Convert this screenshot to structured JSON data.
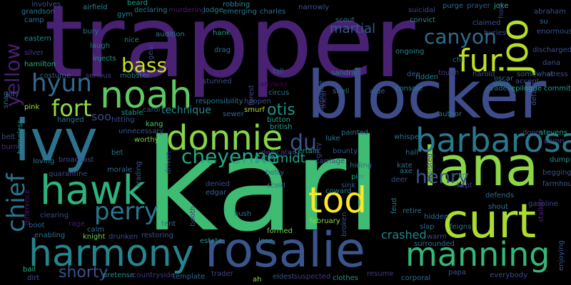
{
  "words": {
    "karl": {
      "text": "karl",
      "color": "#3fbc73"
    },
    "trapper": {
      "text": "trapper",
      "color": "#482173"
    },
    "blocker": {
      "text": "blocker",
      "color": "#3e4c8a"
    },
    "ivy": {
      "text": "ivy",
      "color": "#2c728e"
    },
    "rosalie": {
      "text": "rosalie",
      "color": "#3a548c"
    },
    "lana": {
      "text": "lana",
      "color": "#8bd646"
    },
    "curt": {
      "text": "curt",
      "color": "#addc30"
    },
    "harmony": {
      "text": "harmony",
      "color": "#25858e"
    },
    "noah": {
      "text": "noah",
      "color": "#5ec962"
    },
    "donnie": {
      "text": "donnie",
      "color": "#86d549"
    },
    "hawk": {
      "text": "hawk",
      "color": "#2db27d"
    },
    "barbarosa": {
      "text": "barbarosa",
      "color": "#2a788e"
    },
    "tod": {
      "text": "tod",
      "color": "#fde725"
    },
    "manning": {
      "text": "manning",
      "color": "#35b779"
    },
    "joo": {
      "text": "joo",
      "color": "#b5de2b"
    },
    "fur": {
      "text": "fur",
      "color": "#c2df23"
    },
    "perry": {
      "text": "perry",
      "color": "#2a768e"
    },
    "fort": {
      "text": "fort",
      "color": "#90d743"
    },
    "hyun": {
      "text": "hyun",
      "color": "#31688e"
    },
    "chief": {
      "text": "chief",
      "color": "#2c738e"
    },
    "yellow": {
      "text": "yellow",
      "color": "#481f70"
    },
    "bass": {
      "text": "bass",
      "color": "#c8e020"
    },
    "cheyenne": {
      "text": "cheyenne",
      "color": "#22a884"
    },
    "du": {
      "text": "du",
      "color": "#3b528b"
    },
    "canyon": {
      "text": "canyon",
      "color": "#2e6d8e"
    },
    "henry": {
      "text": "henry",
      "color": "#39558c"
    },
    "shorty": {
      "text": "shorty",
      "color": "#3b528b"
    },
    "otis": {
      "text": "otis",
      "color": "#20928c"
    },
    "schmidt": {
      "text": "schmidt",
      "color": "#1f9e89"
    },
    "martial": {
      "text": "martial",
      "color": "#375a8c"
    },
    "crashed": {
      "text": "crashed",
      "color": "#23898e"
    },
    "soo": {
      "text": "soo",
      "color": "#3e4989"
    },
    "technique": {
      "text": "technique",
      "color": "#23888e"
    },
    "grandson": {
      "text": "grandson",
      "color": "#287c8e"
    },
    "involves": {
      "text": "involves",
      "color": "#3c4f8a"
    },
    "camp": {
      "text": "camp",
      "color": "#2c718e"
    },
    "eastern": {
      "text": "eastern",
      "color": "#228c8d"
    },
    "silver": {
      "text": "silver",
      "color": "#443a83"
    },
    "hamilton": {
      "text": "hamilton",
      "color": "#29af7f"
    },
    "pity": {
      "text": "pity",
      "color": "#38588c"
    },
    "snap": {
      "text": "snap",
      "color": "#31688e"
    },
    "pink": {
      "text": "pink",
      "color": "#a2da37"
    },
    "belt": {
      "text": "belt",
      "color": "#3e4a89"
    },
    "burnt": {
      "text": "burnt",
      "color": "#472d7b"
    },
    "homeless": {
      "text": "homeless",
      "color": "#1f9a8a"
    },
    "difference": {
      "text": "difference",
      "color": "#48186a"
    },
    "boot": {
      "text": "boot",
      "color": "#34618d"
    },
    "bail": {
      "text": "bail",
      "color": "#29af7f"
    },
    "dirt": {
      "text": "dirt",
      "color": "#3b528b"
    },
    "quarantine": {
      "text": "quarantine",
      "color": "#3f4788"
    },
    "loving": {
      "text": "loving",
      "color": "#2a788e"
    },
    "broadcast": {
      "text": "broadcast",
      "color": "#3e4a89"
    },
    "enabling": {
      "text": "enabling",
      "color": "#2e6e8e"
    },
    "clearing": {
      "text": "clearing",
      "color": "#3f4889"
    },
    "rage": {
      "text": "rage",
      "color": "#481d6f"
    },
    "knight": {
      "text": "knight",
      "color": "#6ece58"
    },
    "drunken": {
      "text": "drunken",
      "color": "#3e4c8a"
    },
    "calm": {
      "text": "calm",
      "color": "#2c728e"
    },
    "pretense": {
      "text": "pretense",
      "color": "#228b8d"
    },
    "countryside": {
      "text": "countryside",
      "color": "#453781"
    },
    "template": {
      "text": "template",
      "color": "#31688e"
    },
    "restoring": {
      "text": "restoring",
      "color": "#3a548c"
    },
    "trader": {
      "text": "trader",
      "color": "#3f4788"
    },
    "airfield": {
      "text": "airfield",
      "color": "#25838e"
    },
    "gym": {
      "text": "gym",
      "color": "#277f8e"
    },
    "beard": {
      "text": "beard",
      "color": "#1f9f88"
    },
    "declaring": {
      "text": "declaring",
      "color": "#2a788e"
    },
    "murdering": {
      "text": "murdering",
      "color": "#481a6c"
    },
    "lodge": {
      "text": "lodge",
      "color": "#277e8e"
    },
    "robbing": {
      "text": "robbing",
      "color": "#24878e"
    },
    "emerging": {
      "text": "emerging",
      "color": "#2a788e"
    },
    "charles": {
      "text": "charles",
      "color": "#2c718e"
    },
    "narrowly": {
      "text": "narrowly",
      "color": "#3b528b"
    },
    "suicidal": {
      "text": "suicidal",
      "color": "#414487"
    },
    "purge": {
      "text": "purge",
      "color": "#2e6e8e"
    },
    "prayer": {
      "text": "prayer",
      "color": "#38588c"
    },
    "joke": {
      "text": "joke",
      "color": "#30b37a"
    },
    "abraham": {
      "text": "abraham",
      "color": "#3d4e8a"
    },
    "su": {
      "text": "su",
      "color": "#2d708e"
    },
    "enormous": {
      "text": "enormous",
      "color": "#39568c"
    },
    "bury": {
      "text": "bury",
      "color": "#2c718e"
    },
    "audition": {
      "text": "audition",
      "color": "#29798e"
    },
    "hank": {
      "text": "hank",
      "color": "#1f968b"
    },
    "scout": {
      "text": "scout",
      "color": "#2c728e"
    },
    "convict": {
      "text": "convict",
      "color": "#24878e"
    },
    "claimed": {
      "text": "claimed",
      "color": "#3a548c"
    },
    "buries": {
      "text": "buries",
      "color": "#3e4a89"
    },
    "laugh": {
      "text": "laugh",
      "color": "#287c8e"
    },
    "nice": {
      "text": "nice",
      "color": "#287d8e"
    },
    "gear": {
      "text": "gear",
      "color": "#3f4889"
    },
    "drag": {
      "text": "drag",
      "color": "#2e6e8e"
    },
    "ongoing": {
      "text": "ongoing",
      "color": "#25838e"
    },
    "discharged": {
      "text": "discharged",
      "color": "#3e4c8a"
    },
    "injects": {
      "text": "injects",
      "color": "#1f958b"
    },
    "serious": {
      "text": "serious",
      "color": "#433e85"
    },
    "mobster": {
      "text": "mobster",
      "color": "#2a788e"
    },
    "costume": {
      "text": "costume",
      "color": "#34608d"
    },
    "chi": {
      "text": "chi",
      "color": "#2d708e"
    },
    "dee": {
      "text": "dee",
      "color": "#37598c"
    },
    "tall": {
      "text": "tall",
      "color": "#39558c"
    },
    "sandra": {
      "text": "sandra",
      "color": "#277f8e"
    },
    "tough": {
      "text": "tough",
      "color": "#453781"
    },
    "harold": {
      "text": "harold",
      "color": "#3b528b"
    },
    "oscar": {
      "text": "oscar",
      "color": "#2e6e8e"
    },
    "somewhat": {
      "text": "somewhat",
      "color": "#355f8d"
    },
    "dana": {
      "text": "dana",
      "color": "#3e4c8a"
    },
    "stress": {
      "text": "stress",
      "color": "#3d4d8a"
    },
    "accept": {
      "text": "accept",
      "color": "#3d4e8a"
    },
    "epilogue": {
      "text": "epilogue",
      "color": "#22a884"
    },
    "commit": {
      "text": "commit",
      "color": "#1f9e89"
    },
    "evades": {
      "text": "evades",
      "color": "#2e6d8e"
    },
    "stark": {
      "text": "stark",
      "color": "#2a778e"
    },
    "anyway": {
      "text": "anyway",
      "color": "#440154"
    },
    "stunned": {
      "text": "stunned",
      "color": "#3d4e8a"
    },
    "responsibility": {
      "text": "responsibility",
      "color": "#2c728e"
    },
    "forest": {
      "text": "forest",
      "color": "#3f4889"
    },
    "happen": {
      "text": "happen",
      "color": "#3d4d8a"
    },
    "circus": {
      "text": "circus",
      "color": "#2d718e"
    },
    "aide": {
      "text": "aide",
      "color": "#33638d"
    },
    "shell": {
      "text": "shell",
      "color": "#2c738e"
    },
    "console": {
      "text": "console",
      "color": "#25848e"
    },
    "ridden": {
      "text": "ridden",
      "color": "#26828e"
    },
    "meal": {
      "text": "meal",
      "color": "#482878"
    },
    "detail": {
      "text": "detail",
      "color": "#3b528b"
    },
    "author": {
      "text": "author",
      "color": "#2a768e"
    },
    "stable": {
      "text": "stable",
      "color": "#1f9a8a"
    },
    "carol": {
      "text": "carol",
      "color": "#38588c"
    },
    "smurf": {
      "text": "smurf",
      "color": "#b2dd2d"
    },
    "sewer": {
      "text": "sewer",
      "color": "#31678e"
    },
    "hanged": {
      "text": "hanged",
      "color": "#2c728e"
    },
    "hitting": {
      "text": "hitting",
      "color": "#3c4f8a"
    },
    "kang": {
      "text": "kang",
      "color": "#56c667"
    },
    "unnecessary": {
      "text": "unnecessary",
      "color": "#3a538b"
    },
    "button": {
      "text": "button",
      "color": "#1fa088"
    },
    "british": {
      "text": "british",
      "color": "#1f9e89"
    },
    "whisper": {
      "text": "whisper",
      "color": "#2d708e"
    },
    "painted": {
      "text": "painted",
      "color": "#2d708e"
    },
    "luke": {
      "text": "luke",
      "color": "#287c8e"
    },
    "doom": {
      "text": "doom",
      "color": "#3d4d8a"
    },
    "stevens": {
      "text": "stevens",
      "color": "#1fa287"
    },
    "aaron": {
      "text": "aaron",
      "color": "#3f4788"
    },
    "worthy": {
      "text": "worthy",
      "color": "#7ad151"
    },
    "trading": {
      "text": "trading",
      "color": "#365c8d"
    },
    "driven": {
      "text": "driven",
      "color": "#433d84"
    },
    "dedicated": {
      "text": "dedicated",
      "color": "#443983"
    },
    "certain": {
      "text": "certain",
      "color": "#1fa088"
    },
    "grey": {
      "text": "grey",
      "color": "#433d84"
    },
    "bounty": {
      "text": "bounty",
      "color": "#3b528b"
    },
    "hall": {
      "text": "hall",
      "color": "#2e6e8e"
    },
    "assisted": {
      "text": "assisted",
      "color": "#453882"
    },
    "dump": {
      "text": "dump",
      "color": "#20928c"
    },
    "bet": {
      "text": "bet",
      "color": "#2b758e"
    },
    "morale": {
      "text": "morale",
      "color": "#2e6d8e"
    },
    "carriage": {
      "text": "carriage",
      "color": "#3b528b"
    },
    "hiding": {
      "text": "hiding",
      "color": "#2c728e"
    },
    "kate": {
      "text": "kate",
      "color": "#2c718e"
    },
    "axe": {
      "text": "axe",
      "color": "#2c718e"
    },
    "jin": {
      "text": "jin",
      "color": "#25858e"
    },
    "begging": {
      "text": "begging",
      "color": "#3d4e8a"
    },
    "farmhouse": {
      "text": "farmhouse",
      "color": "#365d8d"
    },
    "betty": {
      "text": "betty",
      "color": "#31678e"
    },
    "scold": {
      "text": "scold",
      "color": "#34608d"
    },
    "sink": {
      "text": "sink",
      "color": "#3b528b"
    },
    "pier": {
      "text": "pier",
      "color": "#1fa088"
    },
    "deer": {
      "text": "deer",
      "color": "#3d4e8a"
    },
    "kept": {
      "text": "kept",
      "color": "#3f4889"
    },
    "defends": {
      "text": "defends",
      "color": "#2e6d8e"
    },
    "denied": {
      "text": "denied",
      "color": "#3d4e8a"
    },
    "edgar": {
      "text": "edgar",
      "color": "#32648e"
    },
    "stalker": {
      "text": "stalker",
      "color": "#482475"
    },
    "coward": {
      "text": "coward",
      "color": "#2a788e"
    },
    "feud": {
      "text": "feud",
      "color": "#287c8e"
    },
    "retire": {
      "text": "retire",
      "color": "#2c738e"
    },
    "shout": {
      "text": "shout",
      "color": "#287d8e"
    },
    "gasoline": {
      "text": "gasoline",
      "color": "#3f4788"
    },
    "booth": {
      "text": "booth",
      "color": "#433d84"
    },
    "bush": {
      "text": "bush",
      "color": "#2b748e"
    },
    "tent": {
      "text": "tent",
      "color": "#2d708e"
    },
    "broken": {
      "text": "broken",
      "color": "#3d4e8a"
    },
    "february": {
      "text": "february",
      "color": "#8bd646"
    },
    "hidden": {
      "text": "hidden",
      "color": "#2e6e8e"
    },
    "slap": {
      "text": "slap",
      "color": "#2e6d8e"
    },
    "feigns": {
      "text": "feigns",
      "color": "#2d708e"
    },
    "formed": {
      "text": "formed",
      "color": "#7ad151"
    },
    "warm": {
      "text": "warm",
      "color": "#3e4a89"
    },
    "estate": {
      "text": "estate",
      "color": "#1f948c"
    },
    "lose": {
      "text": "lose",
      "color": "#23898e"
    },
    "surrounded": {
      "text": "surrounded",
      "color": "#2d708e"
    },
    "enjoying": {
      "text": "enjoying",
      "color": "#37598c"
    },
    "papa": {
      "text": "papa",
      "color": "#3b528b"
    },
    "everybody": {
      "text": "everybody",
      "color": "#3e4c8a"
    },
    "ah": {
      "text": "ah",
      "color": "#8bd646"
    },
    "eldest": {
      "text": "eldest",
      "color": "#3a538b"
    },
    "suspected": {
      "text": "suspected",
      "color": "#453882"
    },
    "clothes": {
      "text": "clothes",
      "color": "#21908d"
    },
    "resume": {
      "text": "resume",
      "color": "#453781"
    },
    "corporal": {
      "text": "corporal",
      "color": "#2f6b8e"
    },
    "opposite": {
      "text": "opposite",
      "color": "#3a548c"
    },
    "host": {
      "text": "host",
      "color": "#404588"
    }
  }
}
